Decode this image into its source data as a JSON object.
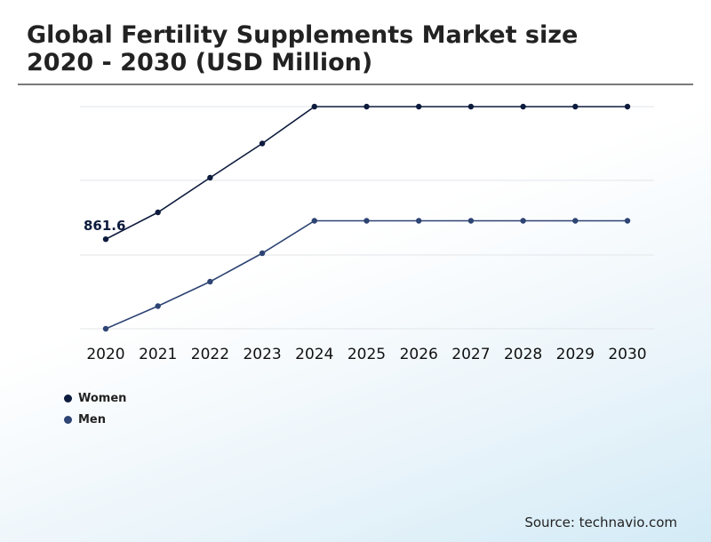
{
  "header": {
    "title": "Global Fertility Supplements Market size\n2020 - 2030 (USD Million)"
  },
  "source": "Source: technavio.com",
  "colors": {
    "women": "#0d1b3d",
    "men": "#2e4474"
  },
  "chart_data": {
    "type": "line",
    "title": "Global Fertility Supplements Market size 2020 - 2030 (USD Million)",
    "x": [
      "2020",
      "2021",
      "2022",
      "2023",
      "2024",
      "2025",
      "2026",
      "2027",
      "2028",
      "2029",
      "2030"
    ],
    "series": [
      {
        "name": "Women",
        "values": [
          861.6,
          922,
          1000,
          1077,
          1160,
          1160,
          1160,
          1160,
          1160,
          1160,
          1160
        ],
        "color": "#0d1b3d"
      },
      {
        "name": "Men",
        "values": [
          660,
          711,
          766,
          830,
          903,
          903,
          903,
          903,
          903,
          903,
          903
        ],
        "color": "#2e4474"
      }
    ],
    "data_labels": [
      {
        "series": 0,
        "index": 0,
        "text": "861.6"
      }
    ],
    "ylim": [
      660,
      1160
    ],
    "grid": true,
    "legend": "bottom-left",
    "xlabel": "",
    "ylabel": ""
  }
}
